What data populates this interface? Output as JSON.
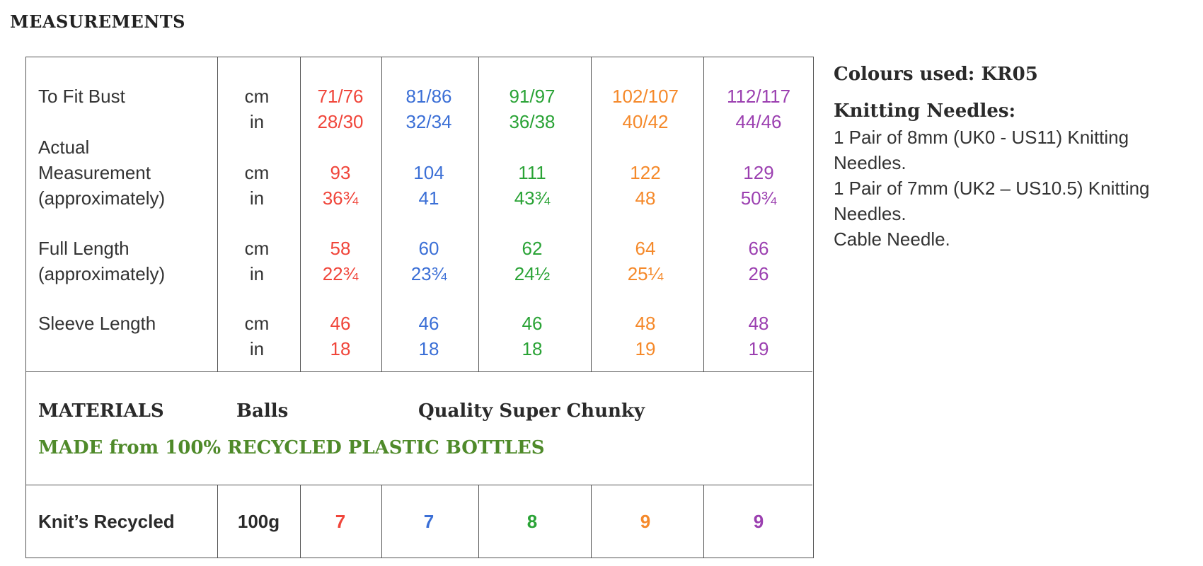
{
  "heading": "MEASUREMENTS",
  "colors": {
    "size1": "#f0453a",
    "size2": "#3b6fd6",
    "size3": "#2aa336",
    "size4": "#f5892a",
    "size5": "#9b3fb0",
    "materials_note": "#4f8a2a"
  },
  "rows": {
    "bust": {
      "label": [
        "To Fit Bust"
      ],
      "units": [
        "cm",
        "in"
      ],
      "values": [
        [
          "71/76",
          "28/30"
        ],
        [
          "81/86",
          "32/34"
        ],
        [
          "91/97",
          "36/38"
        ],
        [
          "102/107",
          "40/42"
        ],
        [
          "112/117",
          "44/46"
        ]
      ]
    },
    "actual": {
      "label": [
        "Actual",
        "Measurement",
        "(approximately)"
      ],
      "units": [
        "cm",
        "in"
      ],
      "values": [
        [
          "93",
          "36¾"
        ],
        [
          "104",
          "41"
        ],
        [
          "111",
          "43¾"
        ],
        [
          "122",
          "48"
        ],
        [
          "129",
          "50¾"
        ]
      ]
    },
    "length": {
      "label": [
        "Full Length",
        "(approximately)"
      ],
      "units": [
        "cm",
        "in"
      ],
      "values": [
        [
          "58",
          "22¾"
        ],
        [
          "60",
          "23¾"
        ],
        [
          "62",
          "24½"
        ],
        [
          "64",
          "25¼"
        ],
        [
          "66",
          "26"
        ]
      ]
    },
    "sleeve": {
      "label": [
        "Sleeve Length"
      ],
      "units": [
        "cm",
        "in"
      ],
      "values": [
        [
          "46",
          "18"
        ],
        [
          "46",
          "18"
        ],
        [
          "46",
          "18"
        ],
        [
          "48",
          "19"
        ],
        [
          "48",
          "19"
        ]
      ]
    }
  },
  "materials": {
    "title": "MATERIALS",
    "balls": "Balls",
    "quality": "Quality  Super Chunky",
    "note": "MADE from 100% RECYCLED PLASTIC BOTTLES"
  },
  "yarn": {
    "name": "Knit’s Recycled",
    "weight": "100g",
    "balls": [
      "7",
      "7",
      "8",
      "9",
      "9"
    ]
  },
  "side": {
    "colours": "Colours used: KR05",
    "needles_title": "Knitting Needles:",
    "lines": [
      "1 Pair of 8mm (UK0 - US11) Knitting",
      "Needles.",
      "1 Pair of 7mm (UK2 – US10.5) Knitting",
      "Needles.",
      "Cable Needle."
    ]
  }
}
